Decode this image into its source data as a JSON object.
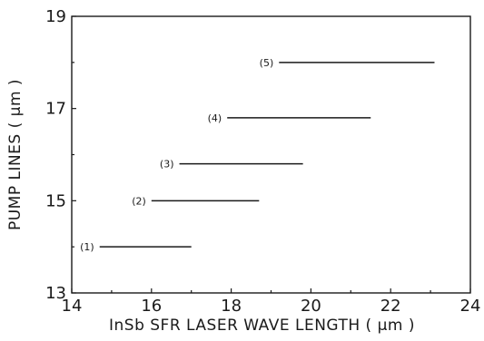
{
  "chart_data": {
    "type": "range-bars",
    "xlabel": "InSb SFR LASER WAVE LENGTH ( μm )",
    "ylabel": "PUMP LINES ( μm )",
    "xlim": [
      14,
      24
    ],
    "ylim": [
      13,
      19
    ],
    "xticks": [
      14,
      16,
      18,
      20,
      22,
      24
    ],
    "xtick_labels": [
      "14",
      "16",
      "18",
      "20",
      "22",
      "24"
    ],
    "yticks": [
      13,
      15,
      17,
      19
    ],
    "ytick_labels": [
      "13",
      "15",
      "17",
      "19"
    ],
    "grid": false,
    "series": [
      {
        "label": "(1)",
        "y": 14.0,
        "x_start": 14.7,
        "x_end": 17.0
      },
      {
        "label": "(2)",
        "y": 15.0,
        "x_start": 16.0,
        "x_end": 18.7
      },
      {
        "label": "(3)",
        "y": 15.8,
        "x_start": 16.7,
        "x_end": 19.8
      },
      {
        "label": "(4)",
        "y": 16.8,
        "x_start": 17.9,
        "x_end": 21.5
      },
      {
        "label": "(5)",
        "y": 18.0,
        "x_start": 19.2,
        "x_end": 23.1
      }
    ]
  }
}
